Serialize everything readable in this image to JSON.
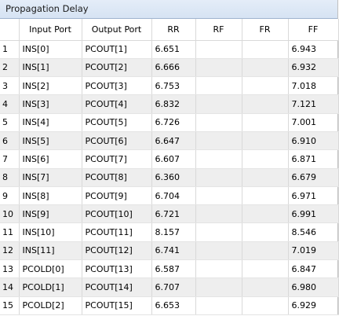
{
  "panel": {
    "title": "Propagation Delay"
  },
  "table": {
    "columns": [
      "",
      "Input Port",
      "Output Port",
      "RR",
      "RF",
      "FR",
      "FF"
    ],
    "rows": [
      {
        "num": "1",
        "input": "INS[0]",
        "output": "PCOUT[1]",
        "rr": "6.651",
        "rf": "",
        "fr": "",
        "ff": "6.943"
      },
      {
        "num": "2",
        "input": "INS[1]",
        "output": "PCOUT[2]",
        "rr": "6.666",
        "rf": "",
        "fr": "",
        "ff": "6.932"
      },
      {
        "num": "3",
        "input": "INS[2]",
        "output": "PCOUT[3]",
        "rr": "6.753",
        "rf": "",
        "fr": "",
        "ff": "7.018"
      },
      {
        "num": "4",
        "input": "INS[3]",
        "output": "PCOUT[4]",
        "rr": "6.832",
        "rf": "",
        "fr": "",
        "ff": "7.121"
      },
      {
        "num": "5",
        "input": "INS[4]",
        "output": "PCOUT[5]",
        "rr": "6.726",
        "rf": "",
        "fr": "",
        "ff": "7.001"
      },
      {
        "num": "6",
        "input": "INS[5]",
        "output": "PCOUT[6]",
        "rr": "6.647",
        "rf": "",
        "fr": "",
        "ff": "6.910"
      },
      {
        "num": "7",
        "input": "INS[6]",
        "output": "PCOUT[7]",
        "rr": "6.607",
        "rf": "",
        "fr": "",
        "ff": "6.871"
      },
      {
        "num": "8",
        "input": "INS[7]",
        "output": "PCOUT[8]",
        "rr": "6.360",
        "rf": "",
        "fr": "",
        "ff": "6.679"
      },
      {
        "num": "9",
        "input": "INS[8]",
        "output": "PCOUT[9]",
        "rr": "6.704",
        "rf": "",
        "fr": "",
        "ff": "6.971"
      },
      {
        "num": "10",
        "input": "INS[9]",
        "output": "PCOUT[10]",
        "rr": "6.721",
        "rf": "",
        "fr": "",
        "ff": "6.991"
      },
      {
        "num": "11",
        "input": "INS[10]",
        "output": "PCOUT[11]",
        "rr": "8.157",
        "rf": "",
        "fr": "",
        "ff": "8.546"
      },
      {
        "num": "12",
        "input": "INS[11]",
        "output": "PCOUT[12]",
        "rr": "6.741",
        "rf": "",
        "fr": "",
        "ff": "7.019"
      },
      {
        "num": "13",
        "input": "PCOLD[0]",
        "output": "PCOUT[13]",
        "rr": "6.587",
        "rf": "",
        "fr": "",
        "ff": "6.847"
      },
      {
        "num": "14",
        "input": "PCOLD[1]",
        "output": "PCOUT[14]",
        "rr": "6.707",
        "rf": "",
        "fr": "",
        "ff": "6.980"
      },
      {
        "num": "15",
        "input": "PCOLD[2]",
        "output": "PCOUT[15]",
        "rr": "6.653",
        "rf": "",
        "fr": "",
        "ff": "6.929"
      }
    ]
  }
}
